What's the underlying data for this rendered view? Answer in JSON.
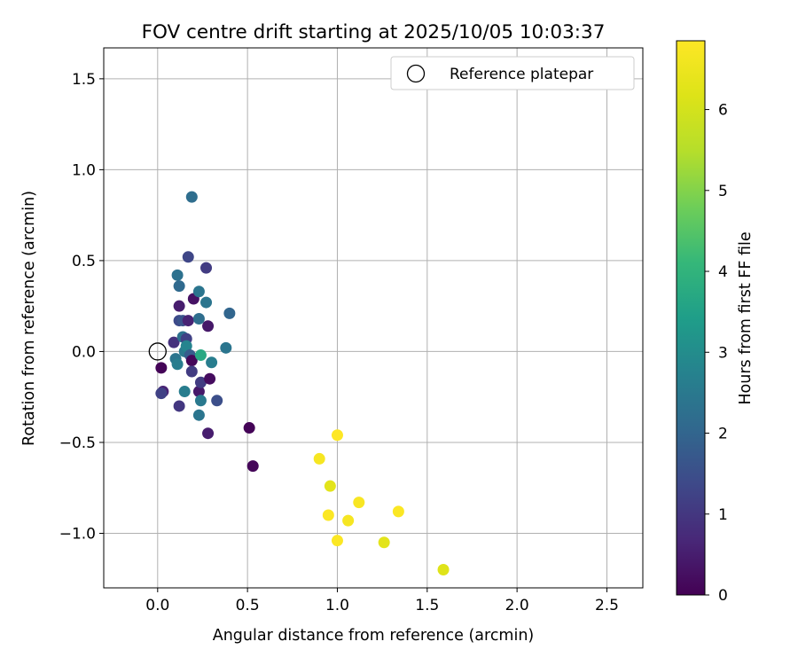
{
  "chart_data": {
    "type": "scatter",
    "title": "FOV centre drift starting at 2025/10/05 10:03:37",
    "xlabel": "Angular distance from reference (arcmin)",
    "ylabel": "Rotation from reference (arcmin)",
    "xlim": [
      -0.3,
      2.7
    ],
    "ylim": [
      -1.3,
      1.67
    ],
    "xticks": [
      0.0,
      0.5,
      1.0,
      1.5,
      2.0,
      2.5
    ],
    "xtick_labels": [
      "0.0",
      "0.5",
      "1.0",
      "1.5",
      "2.0",
      "2.5"
    ],
    "yticks": [
      -1.0,
      -0.5,
      0.0,
      0.5,
      1.0,
      1.5
    ],
    "ytick_labels": [
      "−1.0",
      "−0.5",
      "0.0",
      "0.5",
      "1.0",
      "1.5"
    ],
    "grid": true,
    "legend": {
      "position": "top-right",
      "entries": [
        "Reference platepar"
      ]
    },
    "reference_point": {
      "x": 0.0,
      "y": 0.0,
      "label": "Reference platepar"
    },
    "colorbar": {
      "label": "Hours from first FF file",
      "range": [
        0,
        6.85
      ],
      "ticks": [
        0,
        1,
        2,
        3,
        4,
        5,
        6
      ],
      "tick_labels": [
        "0",
        "1",
        "2",
        "3",
        "4",
        "5",
        "6"
      ],
      "colormap": "viridis"
    },
    "points": [
      {
        "x": 0.02,
        "y": -0.09,
        "hours": 0.05
      },
      {
        "x": 0.03,
        "y": -0.22,
        "hours": 0.6
      },
      {
        "x": 0.02,
        "y": -0.23,
        "hours": 1.2
      },
      {
        "x": 0.09,
        "y": 0.05,
        "hours": 0.9
      },
      {
        "x": 0.1,
        "y": -0.04,
        "hours": 2.4
      },
      {
        "x": 0.11,
        "y": -0.07,
        "hours": 2.6
      },
      {
        "x": 0.11,
        "y": 0.42,
        "hours": 2.3
      },
      {
        "x": 0.12,
        "y": 0.36,
        "hours": 2.1
      },
      {
        "x": 0.12,
        "y": 0.25,
        "hours": 0.5
      },
      {
        "x": 0.12,
        "y": 0.17,
        "hours": 1.4
      },
      {
        "x": 0.12,
        "y": -0.3,
        "hours": 1.0
      },
      {
        "x": 0.14,
        "y": 0.08,
        "hours": 2.3
      },
      {
        "x": 0.14,
        "y": 0.17,
        "hours": 1.6
      },
      {
        "x": 0.15,
        "y": -0.22,
        "hours": 2.6
      },
      {
        "x": 0.15,
        "y": 0.0,
        "hours": 2.5
      },
      {
        "x": 0.16,
        "y": 0.07,
        "hours": 1.2
      },
      {
        "x": 0.16,
        "y": 0.03,
        "hours": 2.8
      },
      {
        "x": 0.17,
        "y": 0.52,
        "hours": 1.3
      },
      {
        "x": 0.17,
        "y": 0.17,
        "hours": 0.6
      },
      {
        "x": 0.18,
        "y": -0.02,
        "hours": 1.8
      },
      {
        "x": 0.19,
        "y": -0.05,
        "hours": 0.1
      },
      {
        "x": 0.19,
        "y": 0.85,
        "hours": 2.2
      },
      {
        "x": 0.19,
        "y": -0.11,
        "hours": 1.1
      },
      {
        "x": 0.2,
        "y": 0.29,
        "hours": 0.3
      },
      {
        "x": 0.23,
        "y": 0.33,
        "hours": 2.4
      },
      {
        "x": 0.23,
        "y": 0.18,
        "hours": 2.2
      },
      {
        "x": 0.23,
        "y": -0.35,
        "hours": 2.4
      },
      {
        "x": 0.23,
        "y": -0.22,
        "hours": 0.4
      },
      {
        "x": 0.24,
        "y": -0.27,
        "hours": 2.5
      },
      {
        "x": 0.24,
        "y": -0.17,
        "hours": 1.1
      },
      {
        "x": 0.24,
        "y": -0.02,
        "hours": 3.7
      },
      {
        "x": 0.27,
        "y": 0.46,
        "hours": 1.1
      },
      {
        "x": 0.27,
        "y": 0.27,
        "hours": 2.4
      },
      {
        "x": 0.28,
        "y": 0.14,
        "hours": 0.4
      },
      {
        "x": 0.28,
        "y": -0.45,
        "hours": 0.5
      },
      {
        "x": 0.29,
        "y": -0.15,
        "hours": 0.2
      },
      {
        "x": 0.3,
        "y": -0.06,
        "hours": 2.6
      },
      {
        "x": 0.33,
        "y": -0.27,
        "hours": 1.5
      },
      {
        "x": 0.38,
        "y": 0.02,
        "hours": 2.4
      },
      {
        "x": 0.4,
        "y": 0.21,
        "hours": 2.0
      },
      {
        "x": 0.51,
        "y": -0.42,
        "hours": 0.05
      },
      {
        "x": 0.53,
        "y": -0.63,
        "hours": 0.1
      },
      {
        "x": 0.9,
        "y": -0.59,
        "hours": 6.7
      },
      {
        "x": 0.95,
        "y": -0.9,
        "hours": 6.8
      },
      {
        "x": 0.96,
        "y": -0.74,
        "hours": 6.3
      },
      {
        "x": 1.0,
        "y": -0.46,
        "hours": 6.85
      },
      {
        "x": 1.0,
        "y": -1.04,
        "hours": 6.8
      },
      {
        "x": 1.06,
        "y": -0.93,
        "hours": 6.7
      },
      {
        "x": 1.12,
        "y": -0.83,
        "hours": 6.75
      },
      {
        "x": 1.26,
        "y": -1.05,
        "hours": 6.3
      },
      {
        "x": 1.34,
        "y": -0.88,
        "hours": 6.8
      },
      {
        "x": 1.59,
        "y": -1.2,
        "hours": 6.2
      }
    ]
  }
}
